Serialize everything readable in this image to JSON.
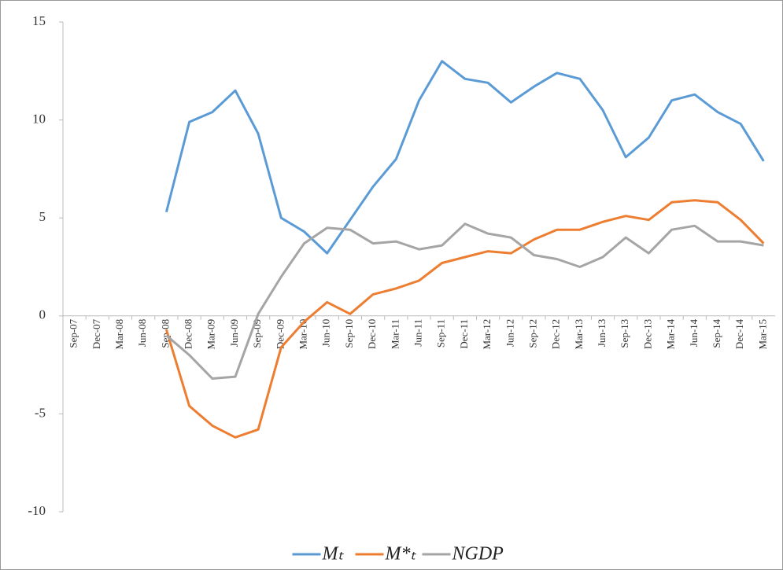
{
  "chart_data": {
    "type": "line",
    "categories": [
      "Sep-07",
      "Dec-07",
      "Mar-08",
      "Jun-08",
      "Sep-08",
      "Dec-08",
      "Mar-09",
      "Jun-09",
      "Sep-09",
      "Dec-09",
      "Mar-10",
      "Jun-10",
      "Sep-10",
      "Dec-10",
      "Mar-11",
      "Jun-11",
      "Sep-11",
      "Dec-11",
      "Mar-12",
      "Jun-12",
      "Sep-12",
      "Dec-12",
      "Mar-13",
      "Jun-13",
      "Sep-13",
      "Dec-13",
      "Mar-14",
      "Jun-14",
      "Sep-14",
      "Dec-14",
      "Mar-15"
    ],
    "series": [
      {
        "name": "Mₜ",
        "color": "#5b9bd5",
        "values": [
          null,
          null,
          null,
          null,
          5.3,
          9.9,
          10.4,
          11.5,
          9.3,
          5.0,
          4.3,
          3.2,
          4.9,
          6.6,
          8.0,
          11.0,
          13.0,
          12.1,
          11.9,
          10.9,
          11.7,
          12.4,
          12.1,
          10.5,
          8.1,
          9.1,
          11.0,
          11.3,
          10.4,
          9.8,
          7.9
        ]
      },
      {
        "name": "M*ₜ",
        "color": "#ed7d31",
        "values": [
          null,
          null,
          null,
          null,
          -0.7,
          -4.6,
          -5.6,
          -6.2,
          -5.8,
          -1.6,
          -0.3,
          0.7,
          0.1,
          1.1,
          1.4,
          1.8,
          2.7,
          3.0,
          3.3,
          3.2,
          3.9,
          4.4,
          4.4,
          4.8,
          5.1,
          4.9,
          5.8,
          5.9,
          5.8,
          4.9,
          3.7
        ]
      },
      {
        "name": "NGDP",
        "color": "#a5a5a5",
        "values": [
          null,
          null,
          null,
          null,
          -1.0,
          -2.0,
          -3.2,
          -3.1,
          0.1,
          2.0,
          3.7,
          4.5,
          4.4,
          3.7,
          3.8,
          3.4,
          3.6,
          4.7,
          4.2,
          4.0,
          3.1,
          2.9,
          2.5,
          3.0,
          4.0,
          3.2,
          4.4,
          4.6,
          3.8,
          3.8,
          3.6
        ]
      }
    ],
    "ylim": [
      -10,
      15
    ],
    "yticks": [
      -10,
      -5,
      0,
      5,
      10,
      15
    ],
    "legend": "bottom"
  }
}
